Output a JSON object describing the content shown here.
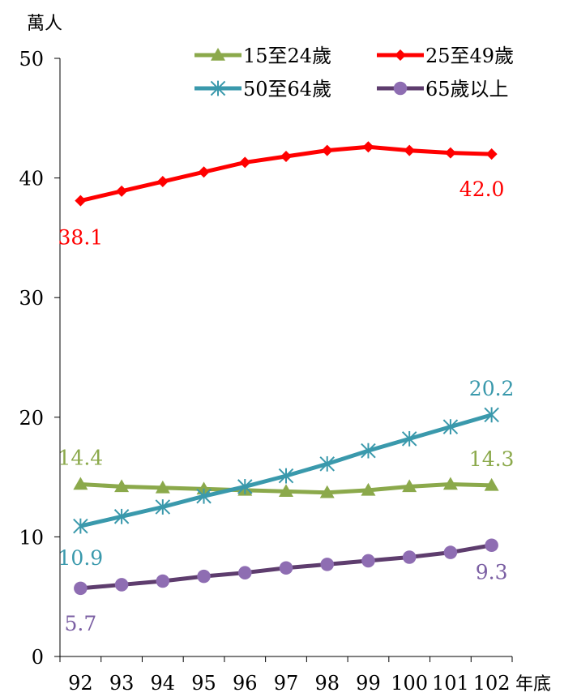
{
  "chart_data": {
    "type": "line",
    "ylabel": "萬人",
    "xlabel": "年底",
    "x": [
      "92",
      "93",
      "94",
      "95",
      "96",
      "97",
      "98",
      "99",
      "100",
      "101",
      "102"
    ],
    "ylim": [
      0,
      50
    ],
    "yticks": [
      0,
      10,
      20,
      30,
      40,
      50
    ],
    "grid": false,
    "legend_position": "top",
    "series": [
      {
        "name": "15至24歲",
        "color": "#8BA94B",
        "marker": "triangle",
        "values": [
          14.4,
          14.2,
          14.1,
          14.0,
          13.9,
          13.8,
          13.7,
          13.9,
          14.2,
          14.4,
          14.3
        ],
        "labels": [
          {
            "index": 0,
            "text": "14.4"
          },
          {
            "index": 10,
            "text": "14.3"
          }
        ]
      },
      {
        "name": "25至49歲",
        "color": "#FF0000",
        "marker": "diamond",
        "values": [
          38.1,
          38.9,
          39.7,
          40.5,
          41.3,
          41.8,
          42.3,
          42.6,
          42.3,
          42.1,
          42.0
        ],
        "labels": [
          {
            "index": 0,
            "text": "38.1"
          },
          {
            "index": 10,
            "text": "42.0"
          }
        ]
      },
      {
        "name": "50至64歲",
        "color": "#3A99AC",
        "marker": "asterisk",
        "values": [
          10.9,
          11.7,
          12.5,
          13.4,
          14.2,
          15.1,
          16.1,
          17.2,
          18.2,
          19.2,
          20.2
        ],
        "labels": [
          {
            "index": 0,
            "text": "10.9"
          },
          {
            "index": 10,
            "text": "20.2"
          }
        ]
      },
      {
        "name": "65歲以上",
        "color": "#5E3D6E",
        "label_color": "#7B5FA3",
        "marker": "circle",
        "marker_color": "#8E6DB2",
        "values": [
          5.7,
          6.0,
          6.3,
          6.7,
          7.0,
          7.4,
          7.7,
          8.0,
          8.3,
          8.7,
          9.3
        ],
        "labels": [
          {
            "index": 0,
            "text": "5.7"
          },
          {
            "index": 10,
            "text": "9.3"
          }
        ]
      }
    ]
  }
}
